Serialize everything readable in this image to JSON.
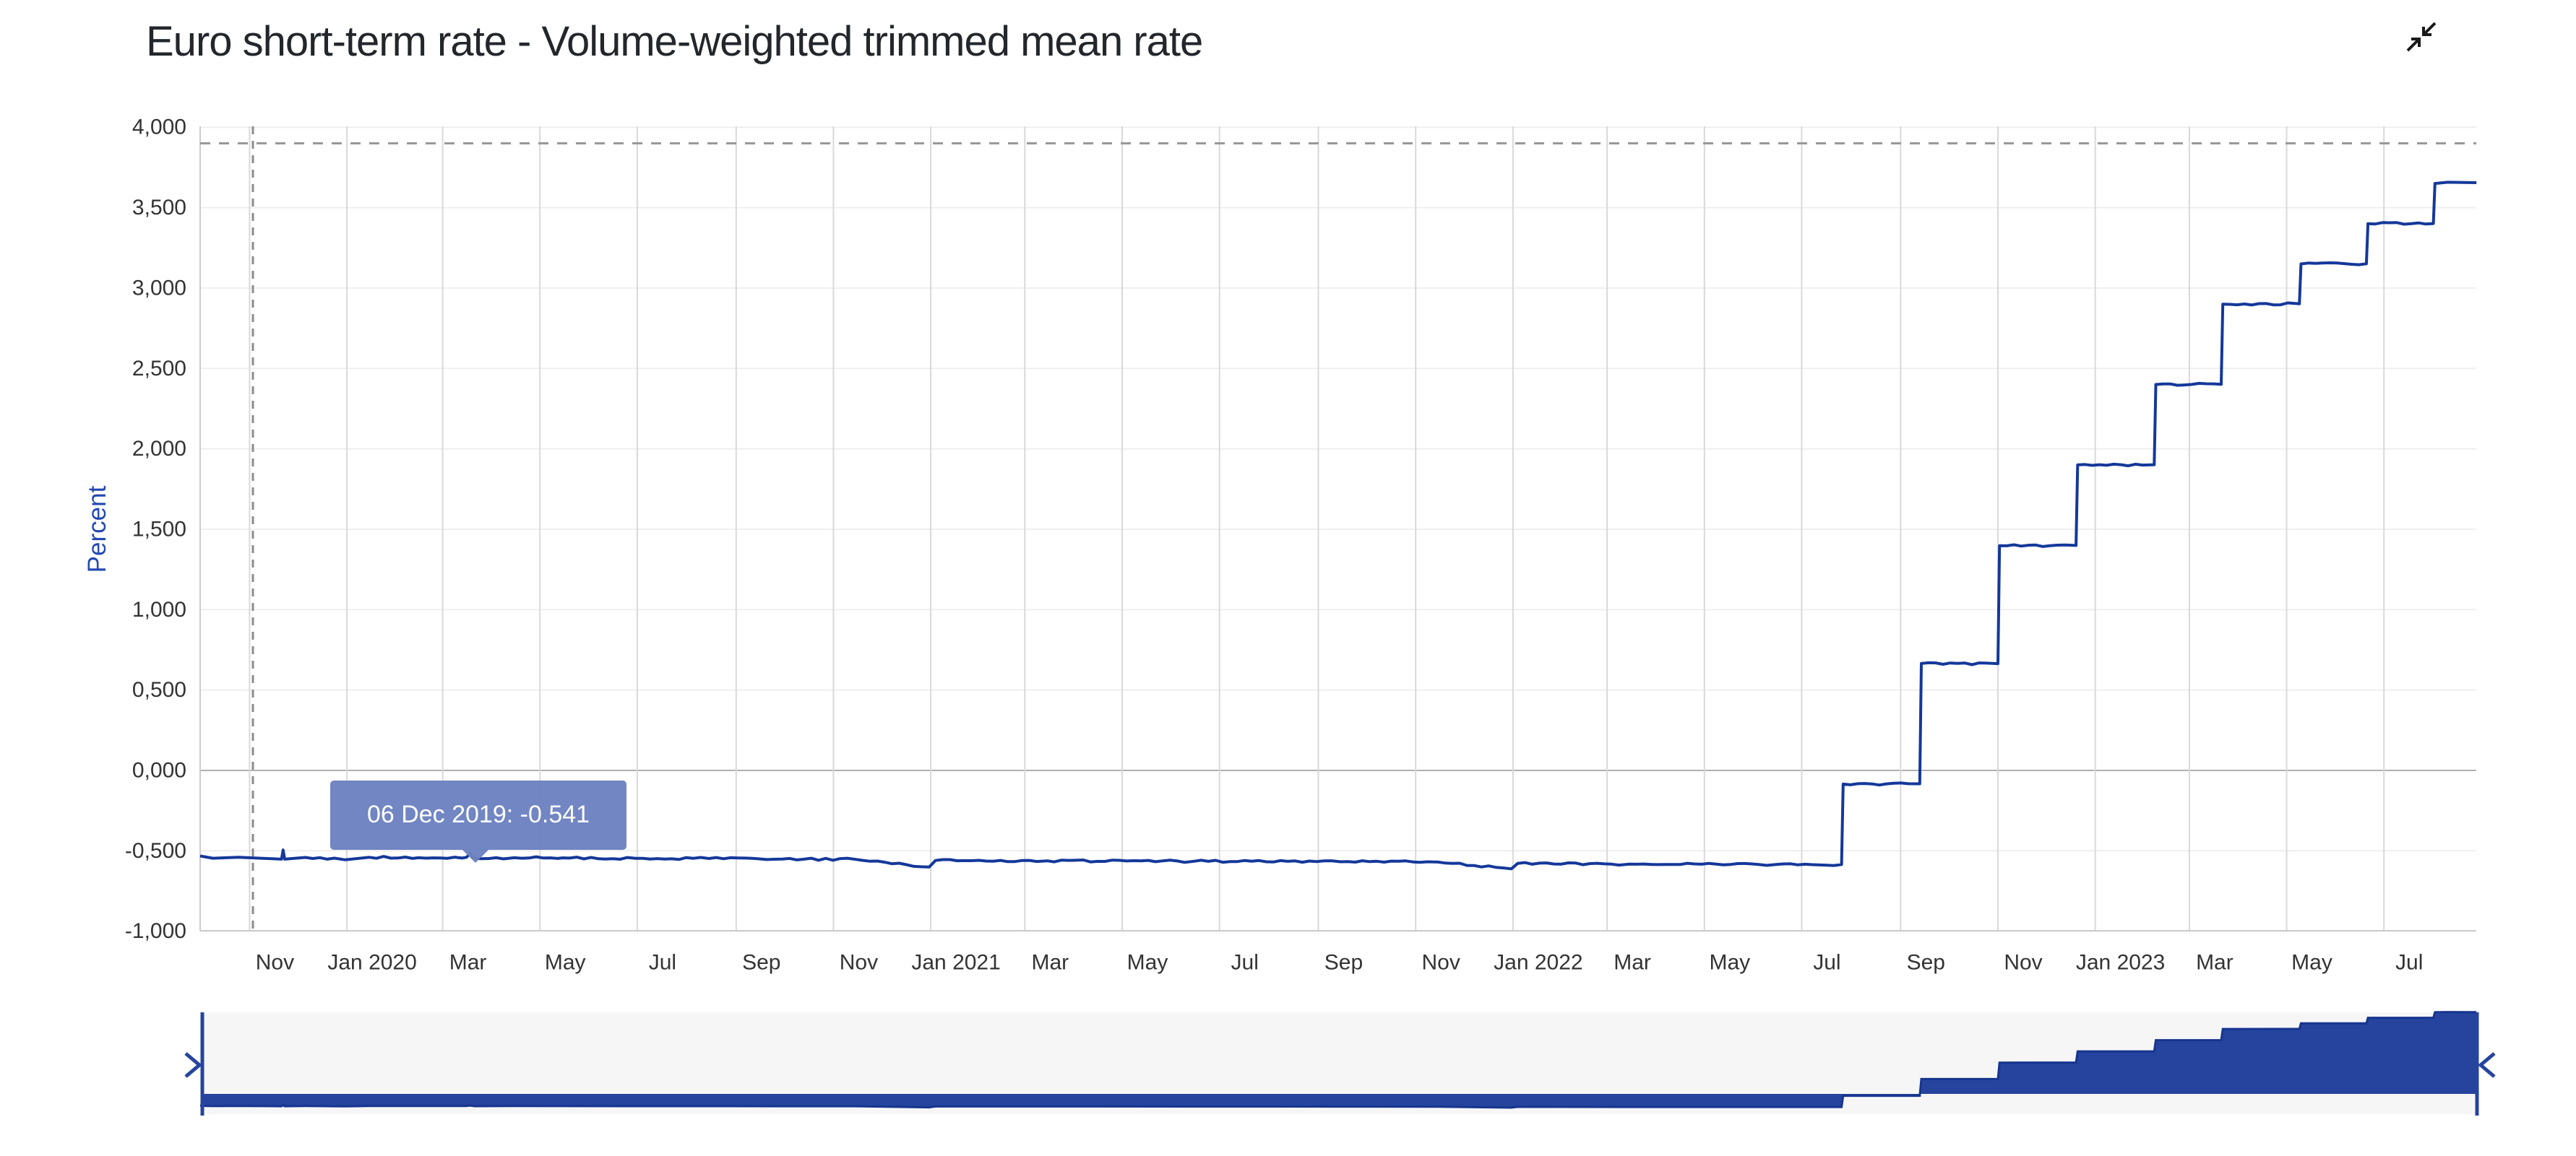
{
  "title": "Euro short-term rate - Volume-weighted trimmed mean rate",
  "controls": {
    "collapse_icon": "collapse-arrows"
  },
  "tooltip": {
    "date": "06 Dec 2019",
    "value": "-0.541",
    "text": "06 Dec 2019: -0.541",
    "bg_color": "#6c82c1",
    "text_color": "#ffffff"
  },
  "colors": {
    "line": "#14389a",
    "navigator_fill": "#26449d",
    "navigator_line": "#16358f",
    "axis_label": "#333333",
    "y_axis_title": "#2448b1",
    "grid_h": "#efefef",
    "grid_v": "#d9d9d9",
    "zero_line": "#b0b0b0",
    "axis_line": "#cccccc",
    "dashed_line": "#999999",
    "navigator_bg": "#f6f6f6"
  },
  "chart_data": {
    "type": "line",
    "title": "Euro short-term rate - Volume-weighted trimmed mean rate",
    "ylabel": "Percent",
    "ylim": [
      -1.0,
      4.0
    ],
    "y_tick_labels": [
      "4,000",
      "3,500",
      "3,000",
      "2,500",
      "2,000",
      "1,500",
      "1,000",
      "0,500",
      "0,000",
      "-0,500",
      "-1,000"
    ],
    "y_tick_values": [
      4.0,
      3.5,
      3.0,
      2.5,
      2.0,
      1.5,
      1.0,
      0.5,
      0.0,
      -0.5,
      -1.0
    ],
    "x_range": [
      "2019-10-01",
      "2023-08-28"
    ],
    "x_ticks": [
      {
        "date": "2019-11-01",
        "label": "Nov"
      },
      {
        "date": "2020-01-01",
        "label": "Jan 2020"
      },
      {
        "date": "2020-03-01",
        "label": "Mar"
      },
      {
        "date": "2020-05-01",
        "label": "May"
      },
      {
        "date": "2020-07-01",
        "label": "Jul"
      },
      {
        "date": "2020-09-01",
        "label": "Sep"
      },
      {
        "date": "2020-11-01",
        "label": "Nov"
      },
      {
        "date": "2021-01-01",
        "label": "Jan 2021"
      },
      {
        "date": "2021-03-01",
        "label": "Mar"
      },
      {
        "date": "2021-05-01",
        "label": "May"
      },
      {
        "date": "2021-07-01",
        "label": "Jul"
      },
      {
        "date": "2021-09-01",
        "label": "Sep"
      },
      {
        "date": "2021-11-01",
        "label": "Nov"
      },
      {
        "date": "2022-01-01",
        "label": "Jan 2022"
      },
      {
        "date": "2022-03-01",
        "label": "Mar"
      },
      {
        "date": "2022-05-01",
        "label": "May"
      },
      {
        "date": "2022-07-01",
        "label": "Jul"
      },
      {
        "date": "2022-09-01",
        "label": "Sep"
      },
      {
        "date": "2022-11-01",
        "label": "Nov"
      },
      {
        "date": "2023-01-01",
        "label": "Jan 2023"
      },
      {
        "date": "2023-03-01",
        "label": "Mar"
      },
      {
        "date": "2023-05-01",
        "label": "May"
      },
      {
        "date": "2023-07-01",
        "label": "Jul"
      }
    ],
    "reference_line_dashed_y": 3.9,
    "crosshair_vertical_dashed": true,
    "grid": true,
    "series": [
      {
        "name": "Euro short-term rate - Volume-weighted trimmed mean rate",
        "points": [
          [
            "2019-10-01",
            -0.532
          ],
          [
            "2019-10-09",
            -0.546
          ],
          [
            "2019-10-25",
            -0.54
          ],
          [
            "2019-11-08",
            -0.546
          ],
          [
            "2019-11-21",
            -0.552
          ],
          [
            "2019-11-22",
            -0.495
          ],
          [
            "2019-11-23",
            -0.552
          ],
          [
            "2019-12-06",
            -0.541
          ],
          [
            "2019-12-31",
            -0.556
          ],
          [
            "2020-01-15",
            -0.54
          ],
          [
            "2020-02-15",
            -0.543
          ],
          [
            "2020-03-16",
            -0.54
          ],
          [
            "2020-03-18",
            -0.518
          ],
          [
            "2020-03-21",
            -0.548
          ],
          [
            "2020-04-15",
            -0.543
          ],
          [
            "2020-05-15",
            -0.544
          ],
          [
            "2020-06-30",
            -0.547
          ],
          [
            "2020-08-15",
            -0.548
          ],
          [
            "2020-09-30",
            -0.551
          ],
          [
            "2020-11-15",
            -0.553
          ],
          [
            "2020-12-31",
            -0.601
          ],
          [
            "2021-01-04",
            -0.56
          ],
          [
            "2021-03-15",
            -0.562
          ],
          [
            "2021-06-15",
            -0.565
          ],
          [
            "2021-09-15",
            -0.568
          ],
          [
            "2021-11-15",
            -0.57
          ],
          [
            "2021-12-31",
            -0.612
          ],
          [
            "2022-01-04",
            -0.578
          ],
          [
            "2022-03-15",
            -0.583
          ],
          [
            "2022-06-15",
            -0.585
          ],
          [
            "2022-07-26",
            -0.585
          ],
          [
            "2022-07-27",
            -0.085
          ],
          [
            "2022-09-13",
            -0.083
          ],
          [
            "2022-09-14",
            0.665
          ],
          [
            "2022-11-01",
            0.664
          ],
          [
            "2022-11-02",
            1.398
          ],
          [
            "2022-12-20",
            1.399
          ],
          [
            "2022-12-21",
            1.9
          ],
          [
            "2023-02-07",
            1.901
          ],
          [
            "2023-02-08",
            2.4
          ],
          [
            "2023-03-21",
            2.401
          ],
          [
            "2023-03-22",
            2.9
          ],
          [
            "2023-05-09",
            2.902
          ],
          [
            "2023-05-10",
            3.15
          ],
          [
            "2023-06-20",
            3.151
          ],
          [
            "2023-06-21",
            3.4
          ],
          [
            "2023-08-01",
            3.401
          ],
          [
            "2023-08-02",
            3.65
          ],
          [
            "2023-08-10",
            3.658
          ],
          [
            "2023-08-28",
            3.655
          ]
        ]
      }
    ],
    "legend": false
  },
  "navigator": {
    "type": "area",
    "shows": "full series range selector",
    "left_handle": "chevron-right",
    "right_handle": "chevron-left"
  }
}
